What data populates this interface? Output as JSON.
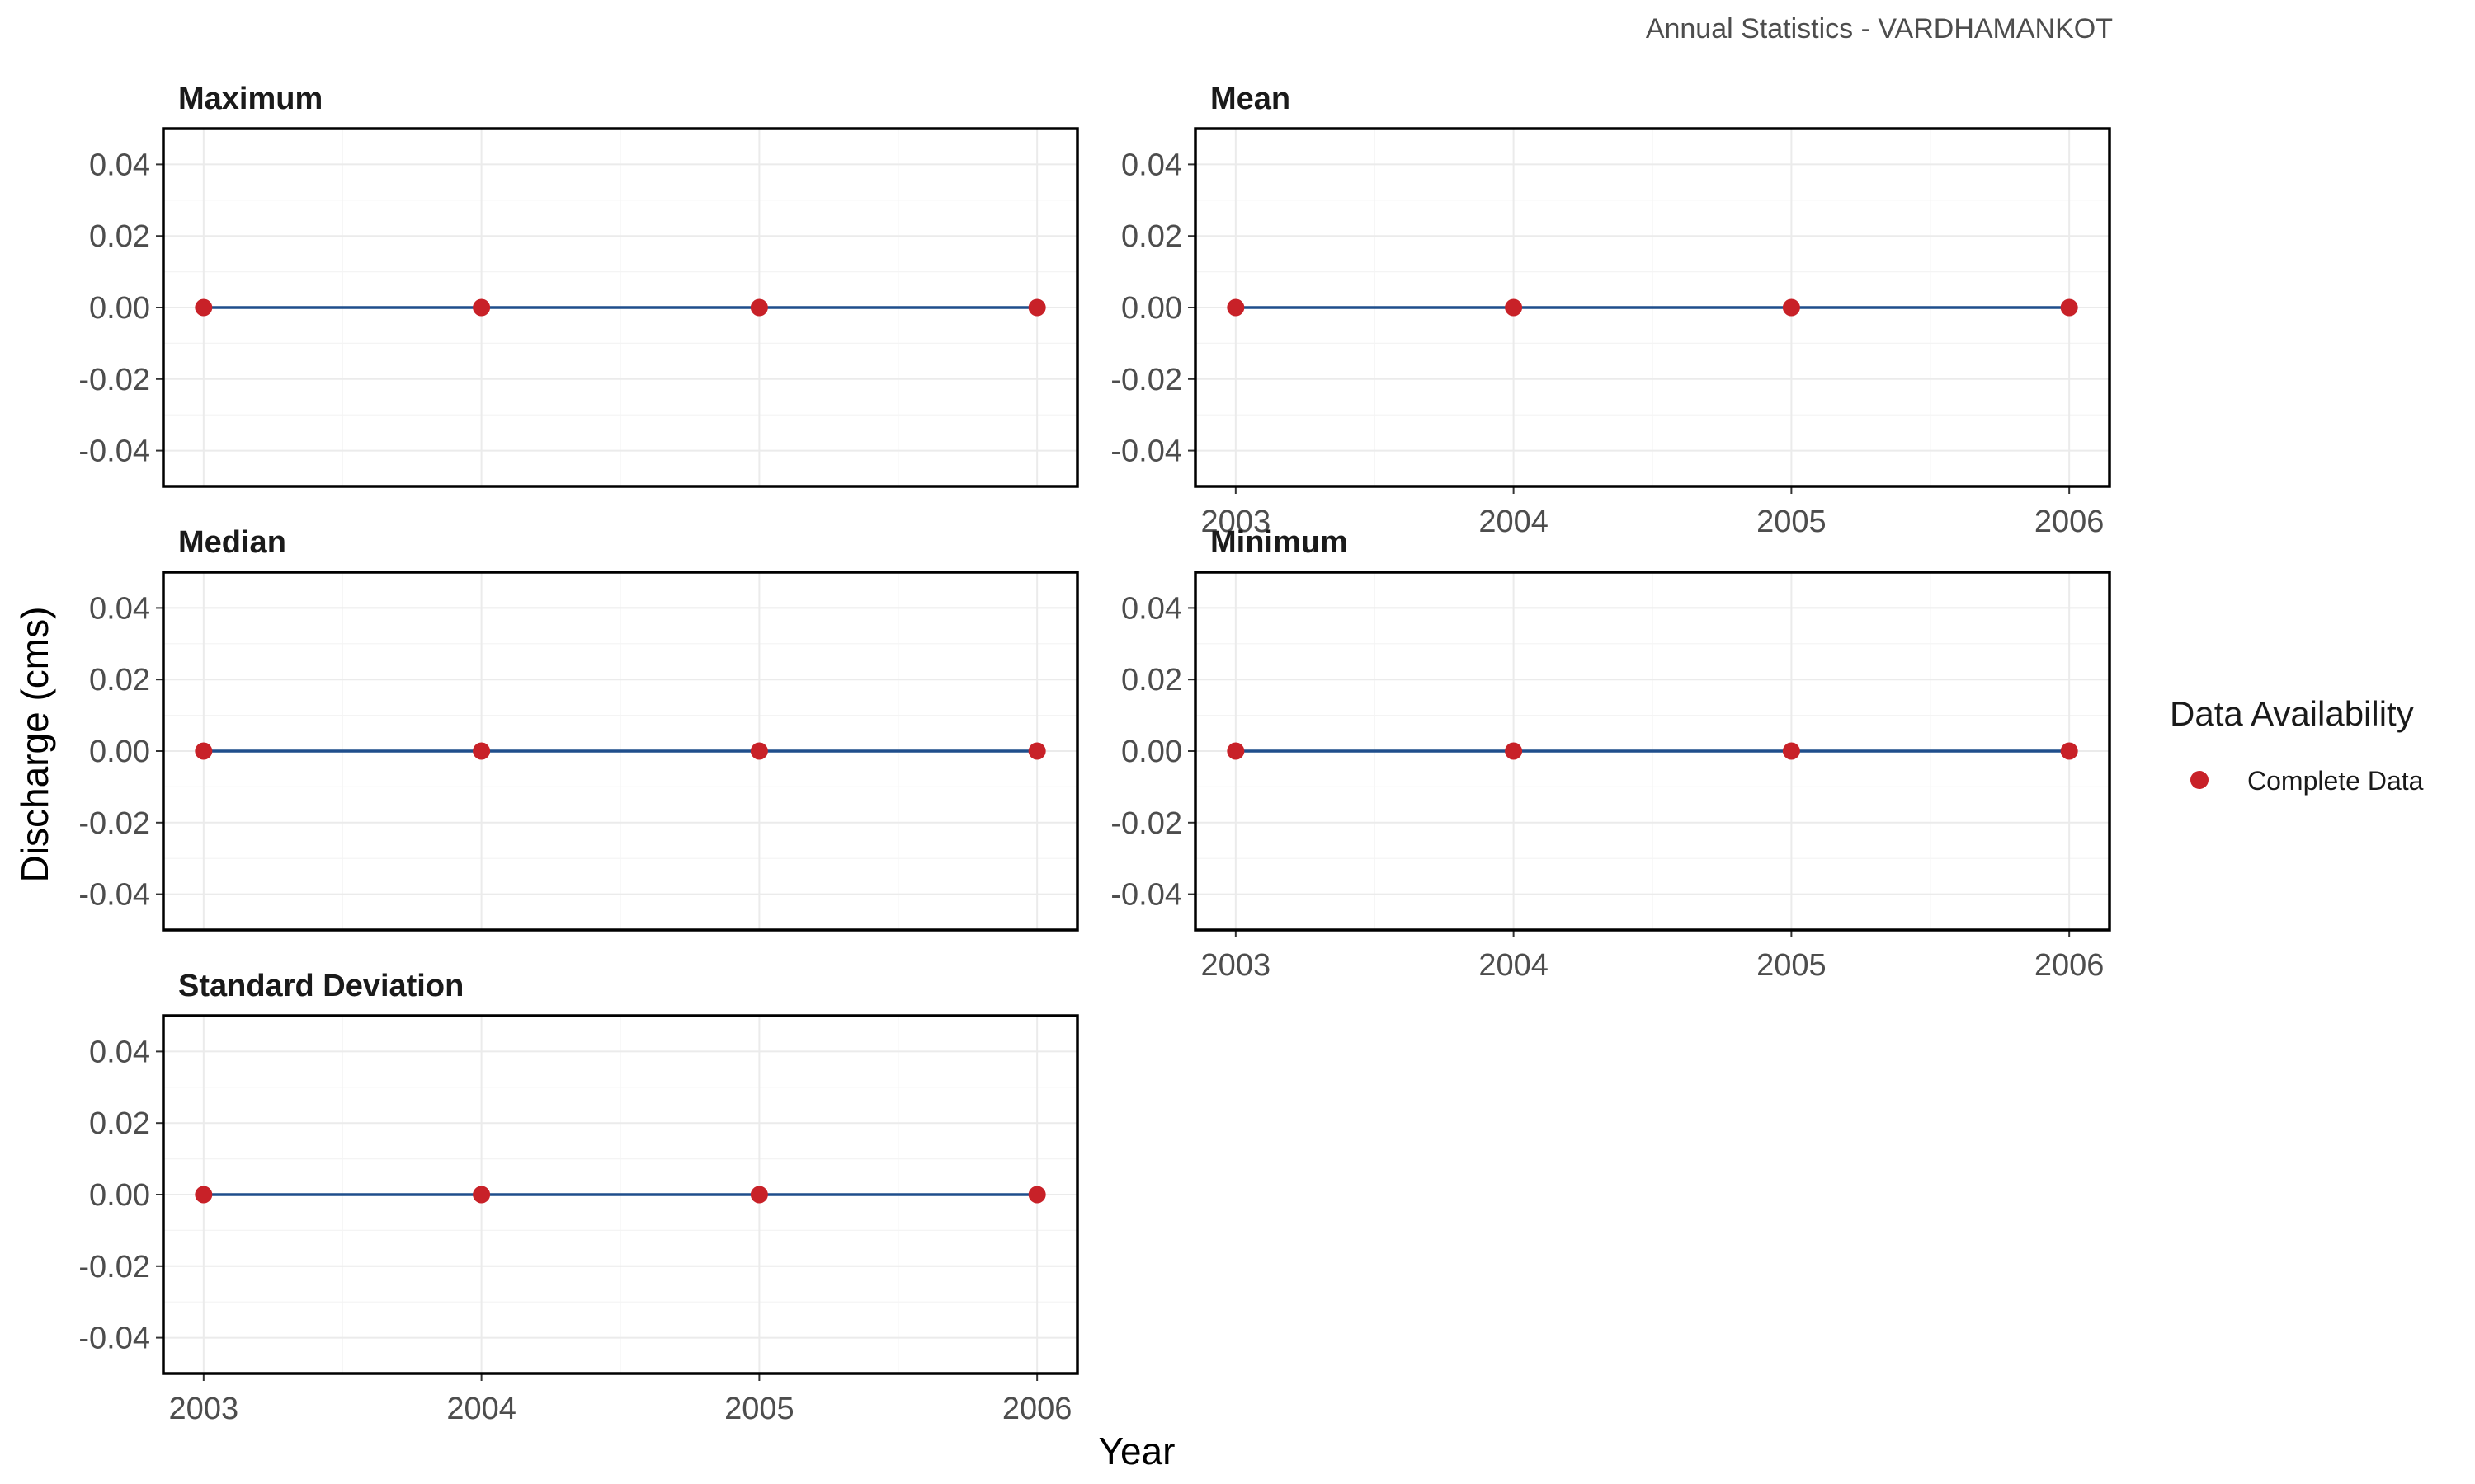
{
  "chart_data": {
    "type": "line",
    "subtitle": "Annual Statistics - VARDHAMANKOT",
    "xlabel": "Year",
    "ylabel": "Discharge (cms)",
    "x": [
      2003,
      2004,
      2005,
      2006
    ],
    "x_tick_labels": [
      "2003",
      "2004",
      "2005",
      "2006"
    ],
    "xlim": [
      2002.855,
      2006.145
    ],
    "ylim": [
      -0.05,
      0.05
    ],
    "y_ticks": [
      0.04,
      0.02,
      0.0,
      -0.02,
      -0.04
    ],
    "y_tick_labels": [
      "0.04",
      "0.02",
      "0.00",
      "-0.02",
      "-0.04"
    ],
    "grid": true,
    "facets": [
      {
        "title": "Maximum",
        "values": [
          0,
          0,
          0,
          0
        ]
      },
      {
        "title": "Mean",
        "values": [
          0,
          0,
          0,
          0
        ]
      },
      {
        "title": "Median",
        "values": [
          0,
          0,
          0,
          0
        ]
      },
      {
        "title": "Minimum",
        "values": [
          0,
          0,
          0,
          0
        ]
      },
      {
        "title": "Standard Deviation",
        "values": [
          0,
          0,
          0,
          0
        ]
      }
    ],
    "legend": {
      "title": "Data Availability",
      "position": "right",
      "entries": [
        {
          "label": "Complete Data",
          "color": "#c82128"
        }
      ]
    },
    "colors": {
      "line": "#1f4e8c",
      "point": "#c82128"
    }
  }
}
